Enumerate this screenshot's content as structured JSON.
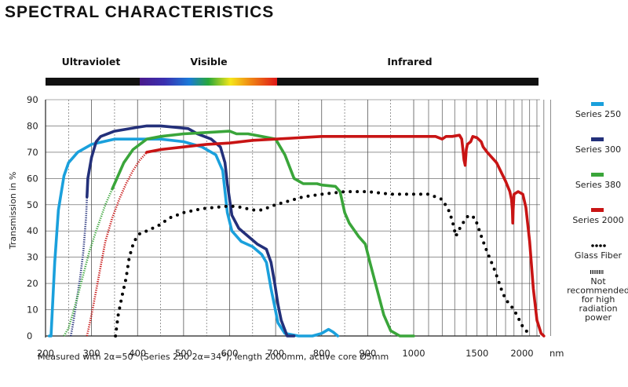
{
  "page": {
    "title": "SPECTRAL CHARACTERISTICS"
  },
  "colors": {
    "series_250": "#1aa0dc",
    "series_300": "#23307a",
    "series_380": "#3aa53a",
    "series_2000": "#c81414",
    "glass_fiber": "#000000",
    "band_bar": "#111111",
    "grid": "#555555"
  },
  "chart_data": {
    "type": "line",
    "title": "SPECTRAL CHARACTERISTICS",
    "xlabel": "nm",
    "ylabel": "Transmission in %",
    "x_axis": "piecewise: linear 200–1000 nm, logarithmic 1000–2000+ nm",
    "ylim": [
      0,
      90
    ],
    "grid": true,
    "legend_position": "right",
    "footnote": "Measured with 2α=50° (Series 250 2α=34°), length 2000mm, active core Ø5mm",
    "bands": [
      "Ultraviolet",
      "Visible",
      "Infrared"
    ],
    "x_ticks": [
      "200",
      "300",
      "400",
      "500",
      "600",
      "700",
      "800",
      "900",
      "1000",
      "1500",
      "2000"
    ],
    "y_ticks": [
      "0",
      "10",
      "20",
      "30",
      "40",
      "50",
      "60",
      "70",
      "80",
      "90"
    ],
    "x_unit": "nm",
    "series": [
      {
        "name": "Series 250",
        "color_key": "series_250",
        "style": "solid",
        "points": [
          [
            208,
            0
          ],
          [
            212,
            0
          ],
          [
            220,
            28
          ],
          [
            228,
            48
          ],
          [
            240,
            61
          ],
          [
            250,
            66
          ],
          [
            270,
            70
          ],
          [
            300,
            73
          ],
          [
            350,
            75
          ],
          [
            400,
            75
          ],
          [
            450,
            75
          ],
          [
            500,
            74
          ],
          [
            540,
            72
          ],
          [
            570,
            69
          ],
          [
            585,
            63
          ],
          [
            595,
            47
          ],
          [
            605,
            40
          ],
          [
            625,
            36
          ],
          [
            650,
            34
          ],
          [
            670,
            31
          ],
          [
            680,
            28
          ],
          [
            690,
            18
          ],
          [
            697,
            12
          ],
          [
            705,
            5
          ],
          [
            720,
            1
          ],
          [
            750,
            0
          ],
          [
            780,
            0
          ],
          [
            800,
            1
          ],
          [
            815,
            2.5
          ],
          [
            825,
            1.5
          ],
          [
            835,
            0
          ]
        ]
      },
      {
        "name": "Series 300",
        "color_key": "series_300",
        "style": "solid",
        "points": [
          [
            290,
            53
          ],
          [
            292,
            60
          ],
          [
            300,
            68
          ],
          [
            310,
            74
          ],
          [
            320,
            76
          ],
          [
            350,
            78
          ],
          [
            400,
            79.5
          ],
          [
            420,
            80
          ],
          [
            450,
            80
          ],
          [
            480,
            79.5
          ],
          [
            510,
            79
          ],
          [
            530,
            77
          ],
          [
            560,
            75
          ],
          [
            580,
            72
          ],
          [
            590,
            66
          ],
          [
            595,
            58
          ],
          [
            605,
            46
          ],
          [
            620,
            41
          ],
          [
            640,
            38
          ],
          [
            660,
            35
          ],
          [
            680,
            33
          ],
          [
            690,
            28
          ],
          [
            698,
            20
          ],
          [
            705,
            12
          ],
          [
            712,
            6
          ],
          [
            725,
            0
          ],
          [
            740,
            0
          ]
        ]
      },
      {
        "name": "Series 300 (not recommended)",
        "color_key": "series_300",
        "style": "hatched",
        "points": [
          [
            255,
            0
          ],
          [
            260,
            5
          ],
          [
            268,
            14
          ],
          [
            275,
            22
          ],
          [
            282,
            32
          ],
          [
            288,
            45
          ],
          [
            290,
            53
          ]
        ]
      },
      {
        "name": "Series 380",
        "color_key": "series_380",
        "style": "solid",
        "points": [
          [
            345,
            56
          ],
          [
            355,
            60
          ],
          [
            370,
            66
          ],
          [
            390,
            71
          ],
          [
            420,
            75
          ],
          [
            450,
            76
          ],
          [
            500,
            77
          ],
          [
            550,
            77.5
          ],
          [
            600,
            78
          ],
          [
            615,
            77
          ],
          [
            640,
            77
          ],
          [
            670,
            76
          ],
          [
            700,
            75
          ],
          [
            710,
            72
          ],
          [
            720,
            69
          ],
          [
            740,
            60
          ],
          [
            760,
            58
          ],
          [
            790,
            58
          ],
          [
            800,
            57.5
          ],
          [
            830,
            57
          ],
          [
            840,
            55
          ],
          [
            850,
            47
          ],
          [
            860,
            43
          ],
          [
            880,
            38
          ],
          [
            895,
            35
          ],
          [
            905,
            28
          ],
          [
            920,
            18
          ],
          [
            935,
            8
          ],
          [
            950,
            2
          ],
          [
            970,
            0
          ],
          [
            1000,
            0
          ]
        ]
      },
      {
        "name": "Series 380 (not recommended)",
        "color_key": "series_380",
        "style": "hatched",
        "points": [
          [
            240,
            0
          ],
          [
            250,
            3
          ],
          [
            265,
            12
          ],
          [
            280,
            22
          ],
          [
            295,
            32
          ],
          [
            310,
            40
          ],
          [
            330,
            50
          ],
          [
            345,
            56
          ]
        ]
      },
      {
        "name": "Series 2000",
        "color_key": "series_2000",
        "style": "solid",
        "points": [
          [
            420,
            70
          ],
          [
            450,
            71
          ],
          [
            500,
            72
          ],
          [
            550,
            73
          ],
          [
            600,
            73.5
          ],
          [
            650,
            74.5
          ],
          [
            700,
            75
          ],
          [
            750,
            75.5
          ],
          [
            800,
            76
          ],
          [
            900,
            76
          ],
          [
            1000,
            76
          ],
          [
            1100,
            76
          ],
          [
            1150,
            76
          ],
          [
            1200,
            75
          ],
          [
            1230,
            76
          ],
          [
            1280,
            76
          ],
          [
            1340,
            76.5
          ],
          [
            1360,
            75
          ],
          [
            1370,
            71
          ],
          [
            1380,
            67
          ],
          [
            1390,
            65
          ],
          [
            1400,
            71
          ],
          [
            1410,
            73
          ],
          [
            1440,
            74
          ],
          [
            1460,
            76
          ],
          [
            1500,
            75.5
          ],
          [
            1540,
            74
          ],
          [
            1560,
            72
          ],
          [
            1600,
            70
          ],
          [
            1700,
            66
          ],
          [
            1800,
            59
          ],
          [
            1850,
            55
          ],
          [
            1870,
            52
          ],
          [
            1880,
            48
          ],
          [
            1885,
            43
          ],
          [
            1890,
            48
          ],
          [
            1900,
            54
          ],
          [
            1950,
            55
          ],
          [
            2010,
            54
          ],
          [
            2050,
            49
          ],
          [
            2100,
            36
          ],
          [
            2150,
            18
          ],
          [
            2200,
            6
          ],
          [
            2260,
            1
          ],
          [
            2300,
            0
          ]
        ]
      },
      {
        "name": "Series 2000 (not recommended)",
        "color_key": "series_2000",
        "style": "hatched",
        "points": [
          [
            290,
            0
          ],
          [
            300,
            8
          ],
          [
            315,
            22
          ],
          [
            330,
            36
          ],
          [
            345,
            45
          ],
          [
            360,
            52
          ],
          [
            375,
            58
          ],
          [
            390,
            63
          ],
          [
            405,
            67
          ],
          [
            420,
            70
          ]
        ]
      },
      {
        "name": "Glass Fiber",
        "color_key": "glass_fiber",
        "style": "dotted",
        "points": [
          [
            352,
            0
          ],
          [
            358,
            8
          ],
          [
            366,
            15
          ],
          [
            375,
            22
          ],
          [
            382,
            30
          ],
          [
            392,
            36
          ],
          [
            405,
            39
          ],
          [
            420,
            40
          ],
          [
            445,
            42
          ],
          [
            470,
            45
          ],
          [
            500,
            47
          ],
          [
            540,
            48.5
          ],
          [
            570,
            49
          ],
          [
            600,
            49.5
          ],
          [
            625,
            49
          ],
          [
            650,
            48
          ],
          [
            670,
            48
          ],
          [
            700,
            50
          ],
          [
            730,
            51.5
          ],
          [
            760,
            53
          ],
          [
            800,
            54
          ],
          [
            850,
            55
          ],
          [
            900,
            55
          ],
          [
            950,
            54
          ],
          [
            1000,
            54
          ],
          [
            1050,
            54
          ],
          [
            1100,
            54
          ],
          [
            1150,
            53
          ],
          [
            1200,
            52
          ],
          [
            1250,
            48
          ],
          [
            1280,
            44
          ],
          [
            1300,
            40
          ],
          [
            1310,
            38
          ],
          [
            1330,
            40
          ],
          [
            1370,
            43
          ],
          [
            1420,
            46
          ],
          [
            1480,
            45
          ],
          [
            1550,
            37
          ],
          [
            1600,
            32
          ],
          [
            1680,
            25
          ],
          [
            1750,
            18
          ],
          [
            1800,
            14
          ],
          [
            1850,
            12
          ],
          [
            1900,
            10
          ],
          [
            1950,
            7
          ],
          [
            2000,
            4
          ],
          [
            2050,
            2
          ],
          [
            2100,
            1
          ]
        ]
      }
    ]
  },
  "legend": [
    {
      "label": "Series 250",
      "color_key": "series_250",
      "swatch": "bar"
    },
    {
      "label": "Series 300",
      "color_key": "series_300",
      "swatch": "bar"
    },
    {
      "label": "Series 380",
      "color_key": "series_380",
      "swatch": "bar"
    },
    {
      "label": "Series 2000",
      "color_key": "series_2000",
      "swatch": "bar"
    },
    {
      "label": "Glass Fiber",
      "color_key": "glass_fiber",
      "swatch": "dots"
    },
    {
      "label": "Not recommended for high radiation power",
      "color_key": "glass_fiber",
      "swatch": "hatch",
      "lines": [
        "Not",
        "recommended",
        "for high",
        "radiation",
        "power"
      ]
    }
  ]
}
